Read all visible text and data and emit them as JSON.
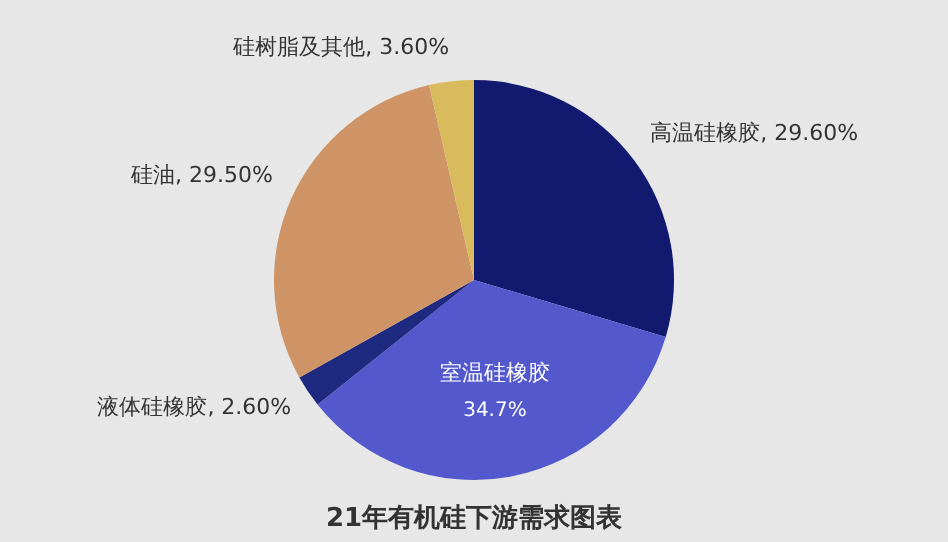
{
  "chart_data": {
    "type": "pie",
    "title": "21年有机硅下游需求图表",
    "categories": [
      "高温硅橡胶",
      "室温硅橡胶",
      "液体硅橡胶",
      "硅油",
      "硅树脂及其他"
    ],
    "values": [
      29.6,
      34.7,
      2.6,
      29.5,
      3.6
    ],
    "value_labels": [
      "29.60%",
      "34.7%",
      "2.60%",
      "29.50%",
      "3.60%"
    ],
    "colors": [
      "#111a6e",
      "#5359cc",
      "#1e2a80",
      "#cf9466",
      "#d9bb5e"
    ]
  }
}
